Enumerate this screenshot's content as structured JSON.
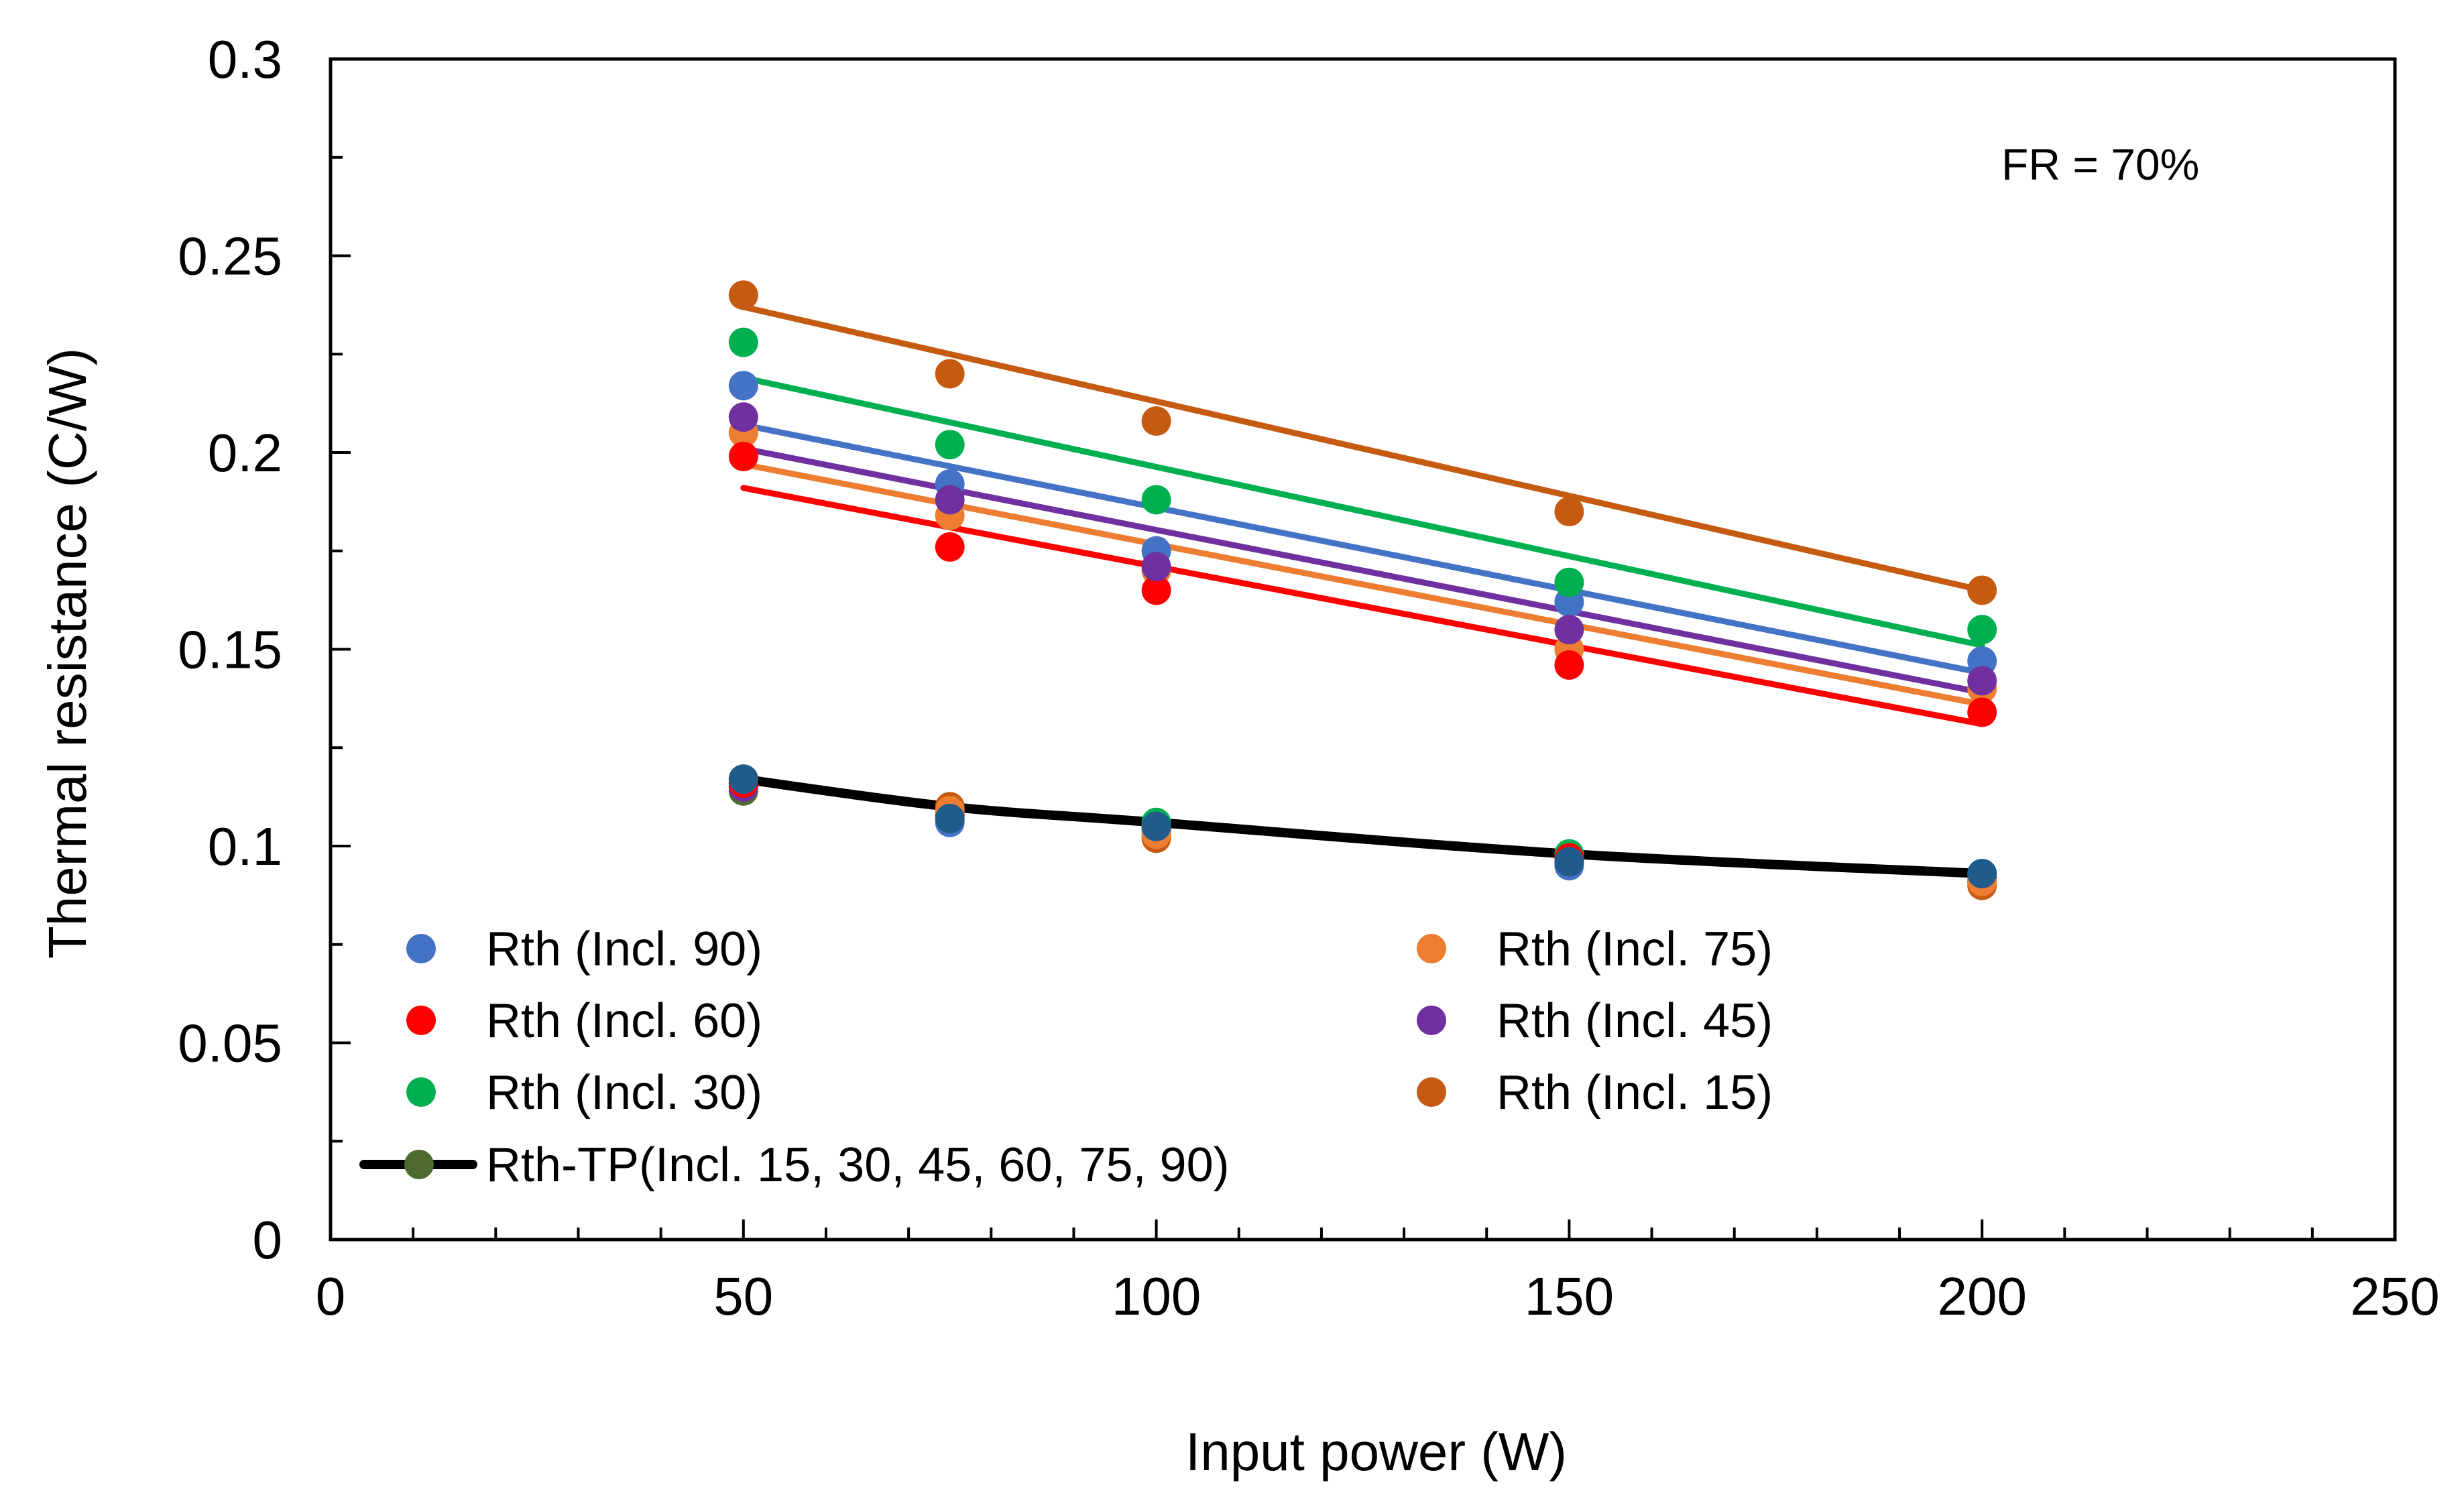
{
  "chart_data": {
    "type": "scatter",
    "title": "",
    "xlabel": "Input power (W)",
    "ylabel": "Thermal resistance (C/W)",
    "xlim": [
      0,
      250
    ],
    "ylim": [
      0,
      0.3
    ],
    "x_ticks": [
      "0",
      "50",
      "100",
      "150",
      "200",
      "250"
    ],
    "y_ticks": [
      "0",
      "0.05",
      "0.1",
      "0.15",
      "0.2",
      "0.25",
      "0.3"
    ],
    "grid": false,
    "annotation": "FR = 70%",
    "x": [
      50,
      75,
      100,
      150,
      200
    ],
    "series": [
      {
        "name": "Rth (Incl. 90)",
        "color": "#4472C4",
        "values": [
          0.217,
          0.192,
          0.175,
          0.162,
          0.147
        ],
        "fit": [
          0.207,
          0.144
        ]
      },
      {
        "name": "Rth (Incl. 75)",
        "color": "#ED7D31",
        "values": [
          0.205,
          0.184,
          0.17,
          0.15,
          0.14
        ],
        "fit": [
          0.197,
          0.136
        ]
      },
      {
        "name": "Rth (Incl. 60)",
        "color": "#FF0000",
        "values": [
          0.199,
          0.176,
          0.165,
          0.146,
          0.134
        ],
        "fit": [
          0.191,
          0.131
        ]
      },
      {
        "name": "Rth (Incl. 45)",
        "color": "#7030A0",
        "values": [
          0.209,
          0.188,
          0.171,
          0.155,
          0.142
        ],
        "fit": [
          0.201,
          0.139
        ]
      },
      {
        "name": "Rth (Incl. 30)",
        "color": "#00B050",
        "values": [
          0.228,
          0.202,
          0.188,
          0.167,
          0.155
        ],
        "fit": [
          0.219,
          0.151
        ]
      },
      {
        "name": "Rth (Incl. 15)",
        "color": "#C55A11",
        "values": [
          0.24,
          0.22,
          0.208,
          0.185,
          0.165
        ],
        "fit": [
          0.237,
          0.165
        ]
      }
    ],
    "tp_series": {
      "name": "Rth-TP(Incl. 15, 30, 45, 60, 75, 90)",
      "line_color": "#000000",
      "marker_color": "#4E6B2F",
      "line_values": [
        0.117,
        0.11,
        0.106,
        0.098,
        0.093
      ],
      "points": [
        {
          "color": "#4E6B2F",
          "values": [
            0.114,
            0.108,
            0.103,
            0.097,
            0.091
          ]
        },
        {
          "color": "#C55A11",
          "values": [
            0.115,
            0.11,
            0.102,
            0.096,
            0.09
          ]
        },
        {
          "color": "#00B050",
          "values": [
            0.116,
            0.109,
            0.106,
            0.098,
            0.092
          ]
        },
        {
          "color": "#7030A0",
          "values": [
            0.115,
            0.107,
            0.104,
            0.096,
            0.091
          ]
        },
        {
          "color": "#FF0000",
          "values": [
            0.116,
            0.108,
            0.105,
            0.097,
            0.092
          ]
        },
        {
          "color": "#ED7D31",
          "values": [
            0.117,
            0.109,
            0.103,
            0.096,
            0.091
          ]
        },
        {
          "color": "#4472C4",
          "values": [
            0.117,
            0.106,
            0.105,
            0.095,
            0.093
          ]
        },
        {
          "color": "#1F5C8B",
          "values": [
            0.117,
            0.107,
            0.105,
            0.096,
            0.093
          ]
        }
      ]
    },
    "legend_position": "lower-left"
  }
}
